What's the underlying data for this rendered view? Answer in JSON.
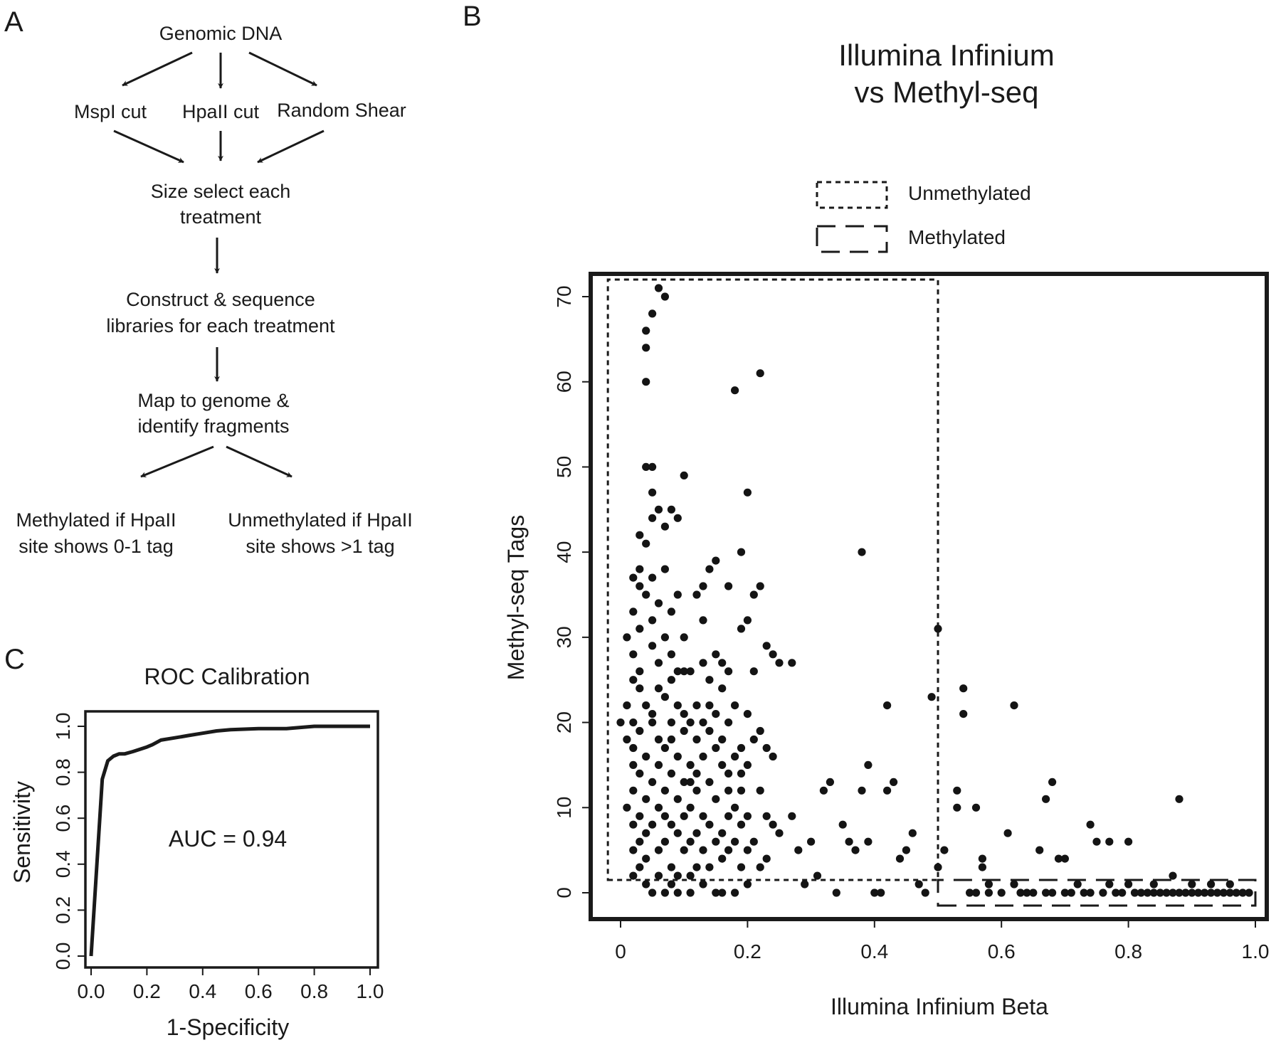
{
  "panel_labels": {
    "a": "A",
    "b": "B",
    "c": "C"
  },
  "flowchart": {
    "root": "Genomic DNA",
    "treatments": [
      "MspI cut",
      "HpaII cut",
      "Random Shear"
    ],
    "step_size_select": [
      "Size select each",
      "treatment"
    ],
    "step_construct": [
      "Construct & sequence",
      "libraries for each treatment"
    ],
    "step_map": [
      "Map to genome &",
      "identify fragments"
    ],
    "outcome_methylated": [
      "Methylated if HpaII",
      "site shows 0-1 tag"
    ],
    "outcome_unmethylated": [
      "Unmethylated if HpaII",
      "site shows >1 tag"
    ]
  },
  "roc": {
    "annotation": "AUC = 0.94"
  },
  "chart_data": [
    {
      "type": "line",
      "title": "ROC Calibration",
      "xlabel": "1-Specificity",
      "ylabel": "Sensitivity",
      "xlim": [
        0,
        1
      ],
      "ylim": [
        0,
        1
      ],
      "xticks": [
        "0.0",
        "0.2",
        "0.4",
        "0.6",
        "0.8",
        "1.0"
      ],
      "yticks": [
        "0.0",
        "0.2",
        "0.4",
        "0.6",
        "0.8",
        "1.0"
      ],
      "auc": 0.94,
      "series": [
        {
          "x": [
            0.0,
            0.04,
            0.06,
            0.08,
            0.1,
            0.12,
            0.15,
            0.2,
            0.22,
            0.25,
            0.3,
            0.35,
            0.4,
            0.45,
            0.5,
            0.6,
            0.7,
            0.75,
            0.8,
            1.0
          ],
          "y": [
            0.0,
            0.77,
            0.85,
            0.87,
            0.88,
            0.88,
            0.89,
            0.91,
            0.92,
            0.94,
            0.95,
            0.96,
            0.97,
            0.98,
            0.985,
            0.99,
            0.99,
            0.995,
            1.0,
            1.0
          ]
        }
      ]
    },
    {
      "type": "scatter",
      "title": [
        "Illumina Infinium",
        "vs Methyl-seq"
      ],
      "xlabel": "Illumina Infinium Beta",
      "ylabel": "Methyl-seq Tags",
      "xlim": [
        0,
        1
      ],
      "ylim": [
        0,
        70
      ],
      "xticks": [
        "0",
        "0.2",
        "0.4",
        "0.6",
        "0.8",
        "1.0"
      ],
      "yticks": [
        "0",
        "10",
        "20",
        "30",
        "40",
        "50",
        "60",
        "70"
      ],
      "legend": {
        "placement": "top",
        "entries": [
          {
            "label": "Unmethylated",
            "style": "short-dash"
          },
          {
            "label": "Methylated",
            "style": "long-dash"
          }
        ]
      },
      "regions": [
        {
          "name": "Unmethylated",
          "x": [
            -0.02,
            0.5
          ],
          "y": [
            1.5,
            72
          ]
        },
        {
          "name": "Methylated",
          "x": [
            0.5,
            1.0
          ],
          "y": [
            -1.5,
            1.5
          ]
        }
      ],
      "points": [
        [
          0.0,
          20
        ],
        [
          0.01,
          10
        ],
        [
          0.01,
          18
        ],
        [
          0.01,
          22
        ],
        [
          0.01,
          30
        ],
        [
          0.02,
          37
        ],
        [
          0.02,
          15
        ],
        [
          0.02,
          5
        ],
        [
          0.02,
          12
        ],
        [
          0.02,
          28
        ],
        [
          0.02,
          8
        ],
        [
          0.02,
          25
        ],
        [
          0.02,
          2
        ],
        [
          0.02,
          33
        ],
        [
          0.02,
          17
        ],
        [
          0.02,
          20
        ],
        [
          0.03,
          36
        ],
        [
          0.03,
          38
        ],
        [
          0.03,
          42
        ],
        [
          0.03,
          26
        ],
        [
          0.03,
          14
        ],
        [
          0.03,
          9
        ],
        [
          0.03,
          6
        ],
        [
          0.03,
          3
        ],
        [
          0.03,
          19
        ],
        [
          0.03,
          24
        ],
        [
          0.03,
          31
        ],
        [
          0.04,
          50
        ],
        [
          0.04,
          60
        ],
        [
          0.04,
          66
        ],
        [
          0.04,
          64
        ],
        [
          0.04,
          41
        ],
        [
          0.04,
          35
        ],
        [
          0.04,
          22
        ],
        [
          0.04,
          11
        ],
        [
          0.04,
          7
        ],
        [
          0.04,
          4
        ],
        [
          0.04,
          16
        ],
        [
          0.04,
          1
        ],
        [
          0.05,
          68
        ],
        [
          0.05,
          50
        ],
        [
          0.05,
          47
        ],
        [
          0.05,
          44
        ],
        [
          0.05,
          37
        ],
        [
          0.05,
          29
        ],
        [
          0.05,
          20
        ],
        [
          0.05,
          13
        ],
        [
          0.05,
          8
        ],
        [
          0.05,
          0
        ],
        [
          0.05,
          21
        ],
        [
          0.05,
          32
        ],
        [
          0.06,
          71
        ],
        [
          0.06,
          45
        ],
        [
          0.06,
          34
        ],
        [
          0.06,
          27
        ],
        [
          0.06,
          18
        ],
        [
          0.06,
          10
        ],
        [
          0.06,
          5
        ],
        [
          0.06,
          2
        ],
        [
          0.06,
          15
        ],
        [
          0.06,
          24
        ],
        [
          0.07,
          70
        ],
        [
          0.07,
          43
        ],
        [
          0.07,
          38
        ],
        [
          0.07,
          30
        ],
        [
          0.07,
          23
        ],
        [
          0.07,
          17
        ],
        [
          0.07,
          12
        ],
        [
          0.07,
          6
        ],
        [
          0.07,
          0
        ],
        [
          0.07,
          9
        ],
        [
          0.08,
          45
        ],
        [
          0.08,
          33
        ],
        [
          0.08,
          28
        ],
        [
          0.08,
          20
        ],
        [
          0.08,
          14
        ],
        [
          0.08,
          8
        ],
        [
          0.08,
          3
        ],
        [
          0.08,
          1
        ],
        [
          0.08,
          25
        ],
        [
          0.08,
          18
        ],
        [
          0.09,
          44
        ],
        [
          0.09,
          35
        ],
        [
          0.09,
          26
        ],
        [
          0.09,
          22
        ],
        [
          0.09,
          16
        ],
        [
          0.09,
          11
        ],
        [
          0.09,
          7
        ],
        [
          0.09,
          2
        ],
        [
          0.09,
          0
        ],
        [
          0.1,
          49
        ],
        [
          0.1,
          30
        ],
        [
          0.1,
          21
        ],
        [
          0.1,
          13
        ],
        [
          0.1,
          9
        ],
        [
          0.1,
          5
        ],
        [
          0.1,
          19
        ],
        [
          0.1,
          26
        ],
        [
          0.11,
          26
        ],
        [
          0.11,
          20
        ],
        [
          0.11,
          15
        ],
        [
          0.11,
          10
        ],
        [
          0.11,
          6
        ],
        [
          0.11,
          2
        ],
        [
          0.11,
          0
        ],
        [
          0.11,
          13
        ],
        [
          0.12,
          35
        ],
        [
          0.12,
          22
        ],
        [
          0.12,
          18
        ],
        [
          0.12,
          12
        ],
        [
          0.12,
          7
        ],
        [
          0.12,
          3
        ],
        [
          0.12,
          14
        ],
        [
          0.13,
          36
        ],
        [
          0.13,
          32
        ],
        [
          0.13,
          27
        ],
        [
          0.13,
          16
        ],
        [
          0.13,
          9
        ],
        [
          0.13,
          5
        ],
        [
          0.13,
          1
        ],
        [
          0.13,
          20
        ],
        [
          0.14,
          38
        ],
        [
          0.14,
          25
        ],
        [
          0.14,
          19
        ],
        [
          0.14,
          13
        ],
        [
          0.14,
          8
        ],
        [
          0.14,
          3
        ],
        [
          0.14,
          22
        ],
        [
          0.15,
          39
        ],
        [
          0.15,
          28
        ],
        [
          0.15,
          17
        ],
        [
          0.15,
          11
        ],
        [
          0.15,
          6
        ],
        [
          0.15,
          0
        ],
        [
          0.15,
          21
        ],
        [
          0.16,
          27
        ],
        [
          0.16,
          24
        ],
        [
          0.16,
          18
        ],
        [
          0.16,
          7
        ],
        [
          0.16,
          4
        ],
        [
          0.16,
          15
        ],
        [
          0.16,
          0
        ],
        [
          0.17,
          36
        ],
        [
          0.17,
          26
        ],
        [
          0.17,
          20
        ],
        [
          0.17,
          14
        ],
        [
          0.17,
          9
        ],
        [
          0.17,
          5
        ],
        [
          0.17,
          12
        ],
        [
          0.18,
          59
        ],
        [
          0.18,
          22
        ],
        [
          0.18,
          16
        ],
        [
          0.18,
          10
        ],
        [
          0.18,
          6
        ],
        [
          0.18,
          0
        ],
        [
          0.19,
          40
        ],
        [
          0.19,
          31
        ],
        [
          0.19,
          17
        ],
        [
          0.19,
          12
        ],
        [
          0.19,
          8
        ],
        [
          0.19,
          3
        ],
        [
          0.19,
          14
        ],
        [
          0.2,
          47
        ],
        [
          0.2,
          32
        ],
        [
          0.2,
          21
        ],
        [
          0.2,
          15
        ],
        [
          0.2,
          9
        ],
        [
          0.2,
          5
        ],
        [
          0.2,
          1
        ],
        [
          0.21,
          35
        ],
        [
          0.21,
          26
        ],
        [
          0.21,
          18
        ],
        [
          0.21,
          6
        ],
        [
          0.22,
          61
        ],
        [
          0.22,
          36
        ],
        [
          0.22,
          19
        ],
        [
          0.22,
          12
        ],
        [
          0.22,
          3
        ],
        [
          0.23,
          29
        ],
        [
          0.23,
          17
        ],
        [
          0.23,
          9
        ],
        [
          0.23,
          4
        ],
        [
          0.24,
          28
        ],
        [
          0.24,
          16
        ],
        [
          0.24,
          8
        ],
        [
          0.25,
          27
        ],
        [
          0.25,
          7
        ],
        [
          0.27,
          27
        ],
        [
          0.27,
          9
        ],
        [
          0.28,
          5
        ],
        [
          0.29,
          1
        ],
        [
          0.3,
          6
        ],
        [
          0.31,
          2
        ],
        [
          0.32,
          12
        ],
        [
          0.33,
          13
        ],
        [
          0.34,
          0
        ],
        [
          0.35,
          8
        ],
        [
          0.36,
          6
        ],
        [
          0.37,
          5
        ],
        [
          0.38,
          12
        ],
        [
          0.38,
          40
        ],
        [
          0.39,
          15
        ],
        [
          0.39,
          6
        ],
        [
          0.4,
          0
        ],
        [
          0.41,
          0
        ],
        [
          0.42,
          22
        ],
        [
          0.42,
          12
        ],
        [
          0.43,
          13
        ],
        [
          0.44,
          4
        ],
        [
          0.45,
          5
        ],
        [
          0.46,
          7
        ],
        [
          0.47,
          1
        ],
        [
          0.48,
          0
        ],
        [
          0.49,
          23
        ],
        [
          0.5,
          31
        ],
        [
          0.5,
          3
        ],
        [
          0.51,
          5
        ],
        [
          0.53,
          10
        ],
        [
          0.53,
          12
        ],
        [
          0.54,
          24
        ],
        [
          0.54,
          21
        ],
        [
          0.55,
          0
        ],
        [
          0.56,
          10
        ],
        [
          0.56,
          0
        ],
        [
          0.57,
          3
        ],
        [
          0.57,
          4
        ],
        [
          0.58,
          0
        ],
        [
          0.58,
          1
        ],
        [
          0.6,
          0
        ],
        [
          0.61,
          7
        ],
        [
          0.62,
          22
        ],
        [
          0.62,
          1
        ],
        [
          0.63,
          0
        ],
        [
          0.64,
          0
        ],
        [
          0.65,
          0
        ],
        [
          0.66,
          5
        ],
        [
          0.67,
          11
        ],
        [
          0.67,
          0
        ],
        [
          0.68,
          13
        ],
        [
          0.68,
          0
        ],
        [
          0.69,
          4
        ],
        [
          0.7,
          4
        ],
        [
          0.7,
          0
        ],
        [
          0.71,
          0
        ],
        [
          0.72,
          1
        ],
        [
          0.73,
          0
        ],
        [
          0.74,
          8
        ],
        [
          0.74,
          0
        ],
        [
          0.75,
          6
        ],
        [
          0.76,
          0
        ],
        [
          0.77,
          6
        ],
        [
          0.77,
          1
        ],
        [
          0.78,
          0
        ],
        [
          0.79,
          0
        ],
        [
          0.8,
          6
        ],
        [
          0.8,
          1
        ],
        [
          0.81,
          0
        ],
        [
          0.82,
          0
        ],
        [
          0.83,
          0
        ],
        [
          0.84,
          1
        ],
        [
          0.84,
          0
        ],
        [
          0.85,
          0
        ],
        [
          0.86,
          0
        ],
        [
          0.87,
          2
        ],
        [
          0.87,
          0
        ],
        [
          0.88,
          11
        ],
        [
          0.88,
          0
        ],
        [
          0.89,
          0
        ],
        [
          0.9,
          1
        ],
        [
          0.9,
          0
        ],
        [
          0.91,
          0
        ],
        [
          0.92,
          0
        ],
        [
          0.93,
          0
        ],
        [
          0.93,
          1
        ],
        [
          0.94,
          0
        ],
        [
          0.95,
          0
        ],
        [
          0.96,
          1
        ],
        [
          0.96,
          0
        ],
        [
          0.97,
          0
        ],
        [
          0.98,
          0
        ],
        [
          0.99,
          0
        ]
      ]
    }
  ]
}
